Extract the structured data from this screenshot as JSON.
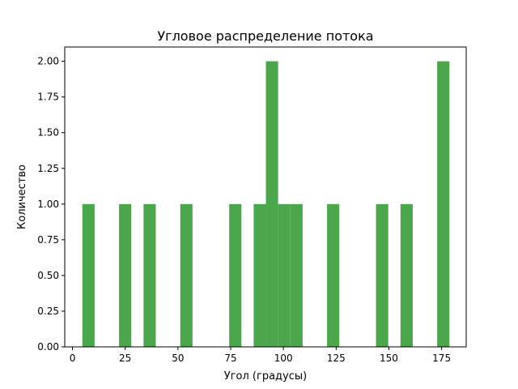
{
  "chart_data": {
    "type": "bar",
    "title": "Угловое распределение потока",
    "xlabel": "Угол (градусы)",
    "ylabel": "Количество",
    "xlim": [
      -3.65,
      186.65
    ],
    "ylim": [
      0,
      2.1
    ],
    "xticks": [
      "0",
      "25",
      "50",
      "75",
      "100",
      "125",
      "150",
      "175"
    ],
    "xtick_values": [
      0,
      25,
      50,
      75,
      100,
      125,
      150,
      175
    ],
    "yticks": [
      "0.00",
      "0.25",
      "0.50",
      "0.75",
      "1.00",
      "1.25",
      "1.50",
      "1.75",
      "2.00"
    ],
    "ytick_values": [
      0,
      0.25,
      0.5,
      0.75,
      1.0,
      1.25,
      1.5,
      1.75,
      2.0
    ],
    "bar_color": "#4ca64c",
    "grid": false,
    "legend": "none",
    "bins": [
      {
        "x0": 4.7,
        "x1": 10.5,
        "value": 1
      },
      {
        "x0": 22.1,
        "x1": 27.9,
        "value": 1
      },
      {
        "x0": 33.7,
        "x1": 39.5,
        "value": 1
      },
      {
        "x0": 51.1,
        "x1": 56.9,
        "value": 1
      },
      {
        "x0": 74.3,
        "x1": 80.1,
        "value": 1
      },
      {
        "x0": 85.9,
        "x1": 91.7,
        "value": 1
      },
      {
        "x0": 91.7,
        "x1": 97.5,
        "value": 2
      },
      {
        "x0": 97.5,
        "x1": 103.3,
        "value": 1
      },
      {
        "x0": 103.3,
        "x1": 109.1,
        "value": 1
      },
      {
        "x0": 120.7,
        "x1": 126.5,
        "value": 1
      },
      {
        "x0": 143.9,
        "x1": 149.7,
        "value": 1
      },
      {
        "x0": 155.5,
        "x1": 161.3,
        "value": 1
      },
      {
        "x0": 172.9,
        "x1": 178.7,
        "value": 2
      }
    ]
  }
}
